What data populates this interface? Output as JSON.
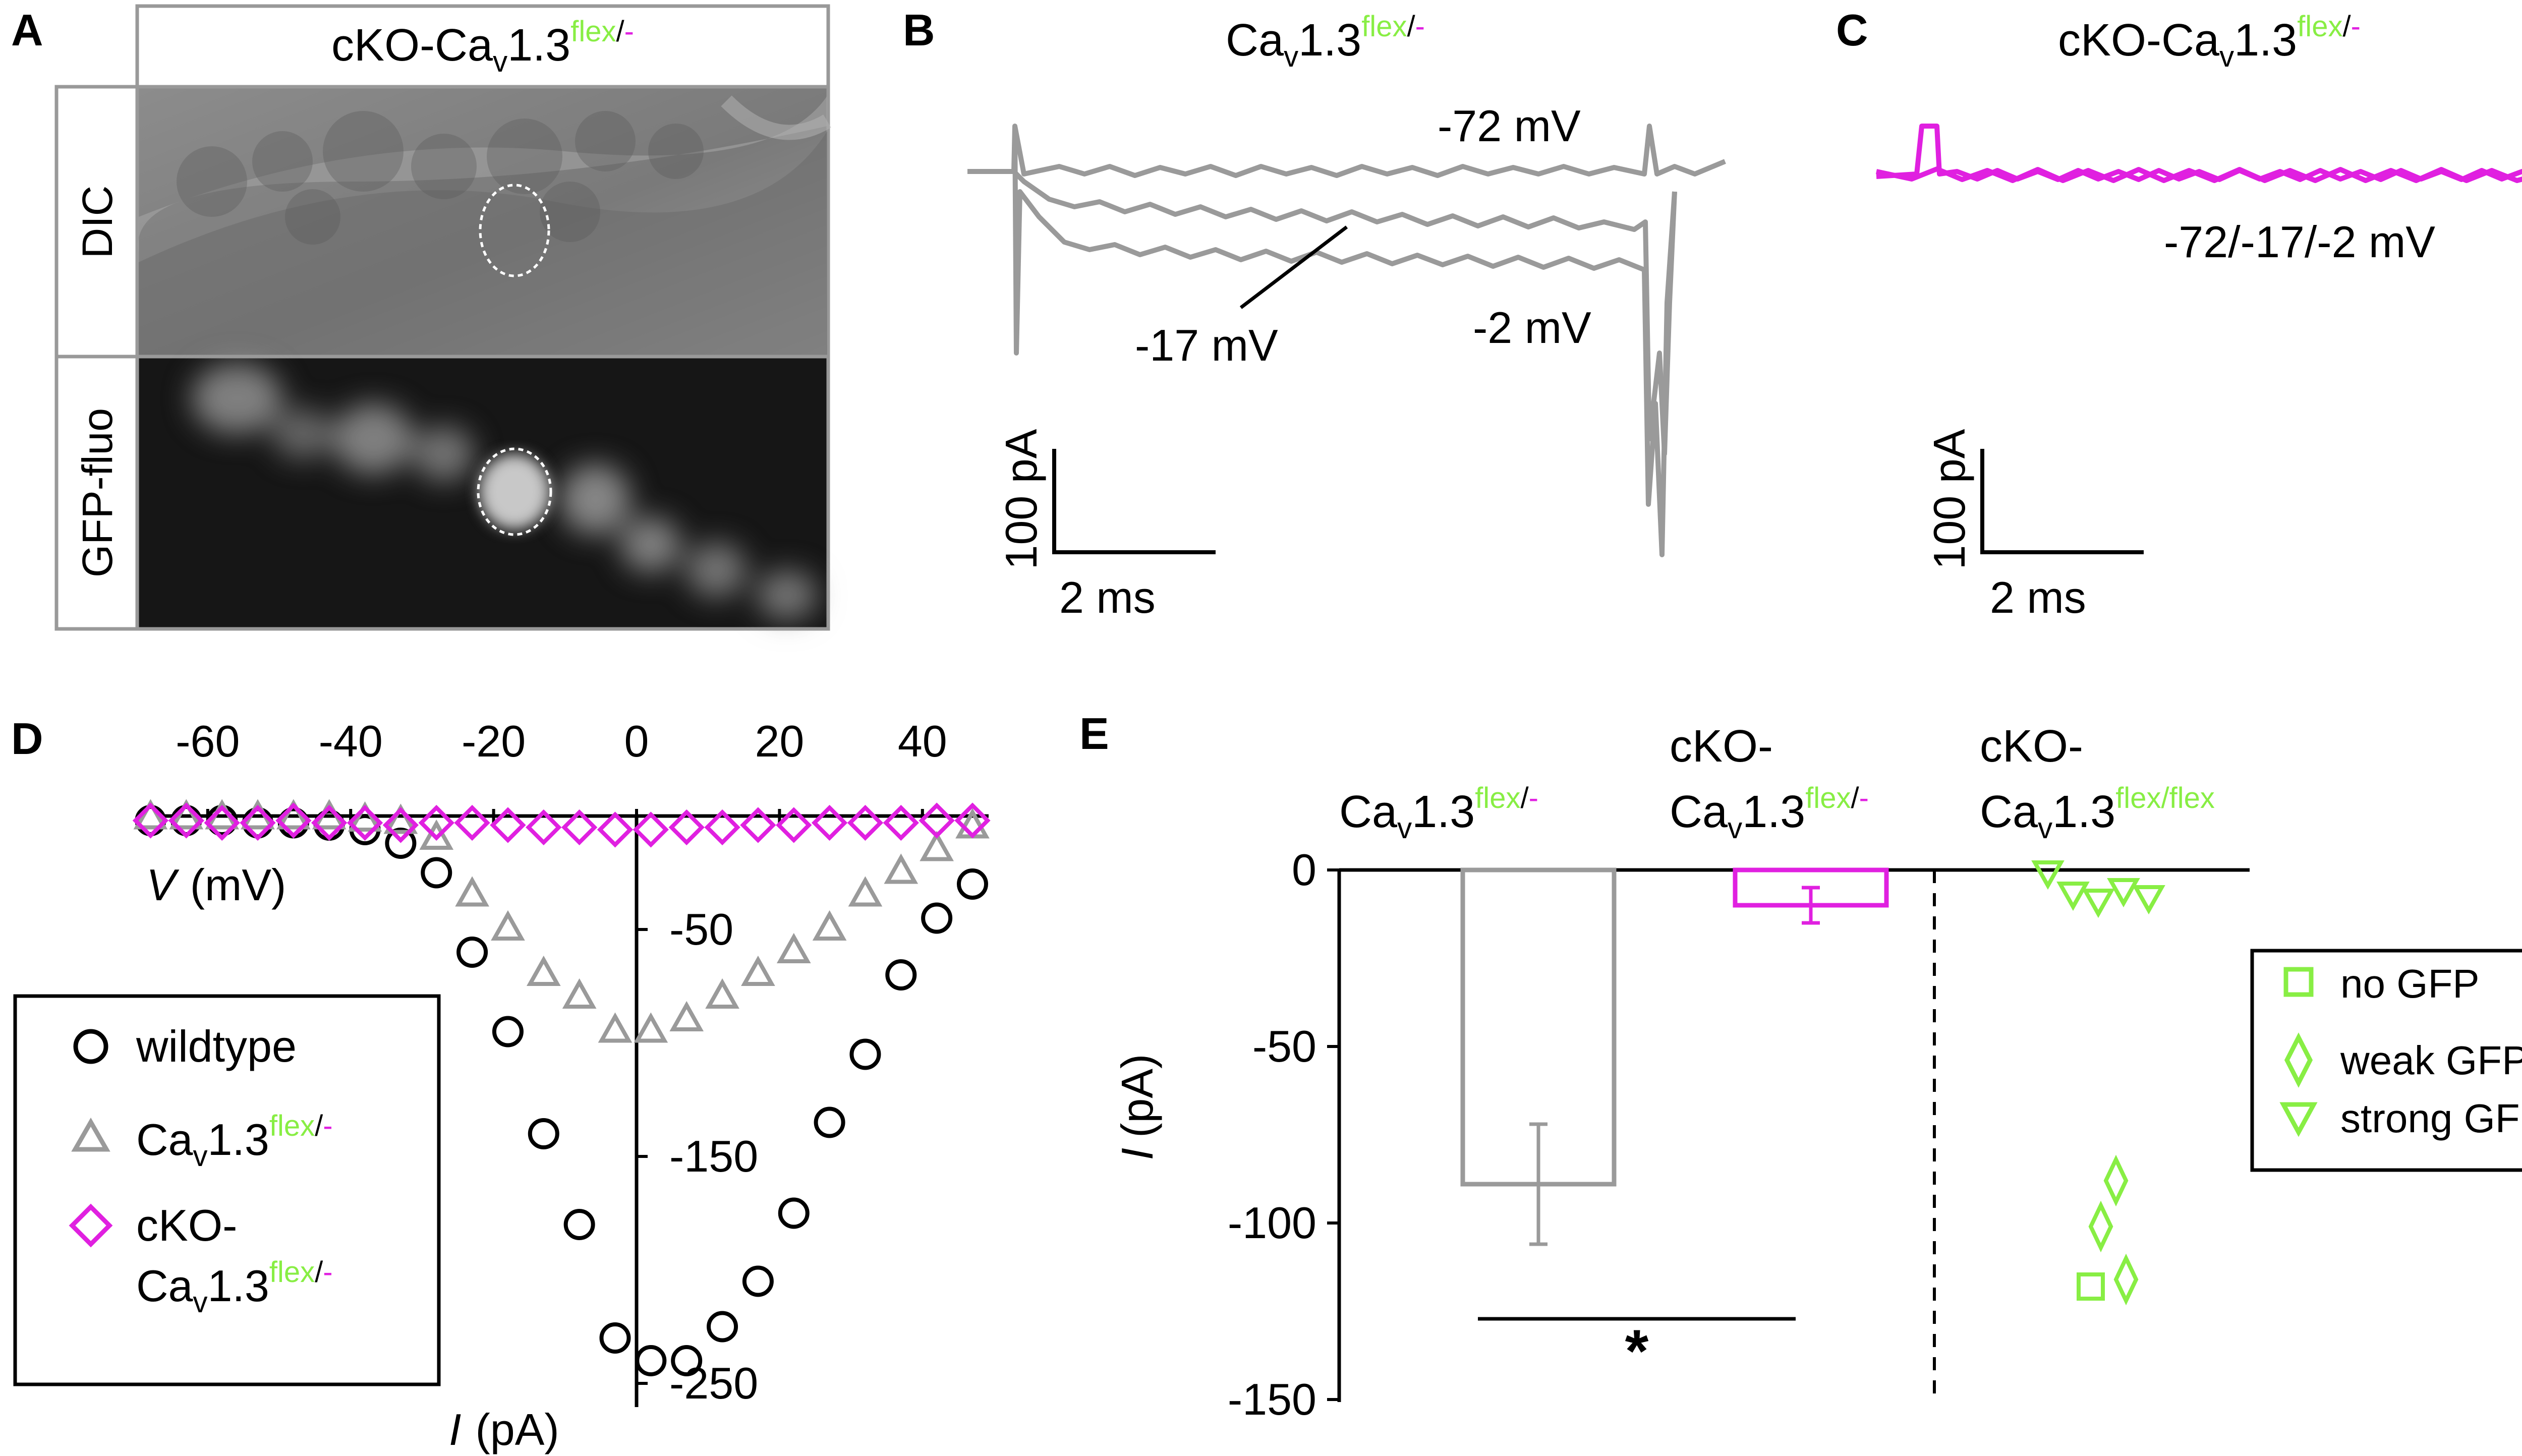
{
  "colors": {
    "gray": "#9a9a9a",
    "magenta": "#e020e0",
    "green": "#88ee44",
    "black": "#000000"
  },
  "panel_labels": {
    "a": "A",
    "b": "B",
    "c": "C",
    "d": "D",
    "e": "E"
  },
  "panel_a": {
    "header_prefix": "cKO-Ca",
    "header_sub": "v",
    "header_mid": "1.3",
    "header_sup_flex": "flex",
    "header_sup_sep": "/",
    "header_sup_minus": "-",
    "row_dic": "DIC",
    "row_gfp": "GFP-fluo"
  },
  "panel_b": {
    "title_prefix": "Ca",
    "title_sub": "v",
    "title_mid": "1.3",
    "title_sup_flex": "flex",
    "title_sup_sep": "/",
    "title_sup_minus": "-",
    "label_m72": "-72 mV",
    "label_m17": "-17 mV",
    "label_m2": "-2 mV",
    "scale_y": "100 pA",
    "scale_x": "2 ms"
  },
  "panel_c": {
    "title_prefix": "cKO-Ca",
    "title_sub": "v",
    "title_mid": "1.3",
    "title_sup_flex": "flex",
    "title_sup_sep": "/",
    "title_sup_minus": "-",
    "label": "-72/-17/-2 mV",
    "scale_y": "100 pA",
    "scale_x": "2 ms"
  },
  "chart_data": [
    {
      "type": "scatter",
      "panel": "D",
      "xlabel_var": "V",
      "xlabel_unit": "(mV)",
      "ylabel_var": "I",
      "ylabel_unit": "(pA)",
      "xlim": [
        -70,
        50
      ],
      "ylim": [
        -260,
        0
      ],
      "x_ticks": [
        -60,
        -40,
        -20,
        0,
        20,
        40
      ],
      "x_tick_labels": [
        "-60",
        "-40",
        "-20",
        "0",
        "20",
        "40"
      ],
      "y_ticks": [
        -50,
        -150,
        -250
      ],
      "y_tick_labels": [
        "-50",
        "-150",
        "-250"
      ],
      "legend_placement": "bottom-left",
      "legend": {
        "wildtype": "wildtype",
        "flex_prefix": "Ca",
        "flex_sub": "v",
        "flex_mid": "1.3",
        "flex_sup_flex": "flex",
        "flex_sup_sep": "/",
        "flex_sup_minus": "-",
        "cko_line1": "cKO-",
        "cko_prefix": "Ca",
        "cko_sub": "v",
        "cko_mid": "1.3",
        "cko_sup_flex": "flex",
        "cko_sup_sep": "/",
        "cko_sup_minus": "-"
      },
      "series": [
        {
          "key": "wildtype",
          "marker": "circle",
          "color": "#000000",
          "x": [
            -68,
            -63,
            -58,
            -53,
            -48,
            -43,
            -38,
            -33,
            -28,
            -23,
            -18,
            -13,
            -8,
            -3,
            2,
            7,
            12,
            17,
            22,
            27,
            32,
            37,
            42,
            47
          ],
          "y": [
            -2,
            -2,
            -2,
            -3,
            -3,
            -4,
            -6,
            -12,
            -25,
            -60,
            -95,
            -140,
            -180,
            -230,
            -240,
            -240,
            -225,
            -205,
            -175,
            -135,
            -105,
            -70,
            -45,
            -30
          ]
        },
        {
          "key": "flex",
          "marker": "triangle",
          "color": "#9a9a9a",
          "x": [
            -68,
            -63,
            -58,
            -53,
            -48,
            -43,
            -38,
            -33,
            -28,
            -23,
            -18,
            -13,
            -8,
            -3,
            2,
            7,
            12,
            17,
            22,
            27,
            32,
            37,
            42,
            47
          ],
          "y": [
            -1,
            -1,
            -1,
            -1,
            -1,
            -1,
            -2,
            -3,
            -10,
            -35,
            -50,
            -70,
            -80,
            -95,
            -95,
            -90,
            -80,
            -70,
            -60,
            -50,
            -35,
            -25,
            -15,
            -5
          ]
        },
        {
          "key": "cko",
          "marker": "diamond",
          "color": "#e020e0",
          "x": [
            -68,
            -63,
            -58,
            -53,
            -48,
            -43,
            -38,
            -33,
            -28,
            -23,
            -18,
            -13,
            -8,
            -3,
            2,
            7,
            12,
            17,
            22,
            27,
            32,
            37,
            42,
            47
          ],
          "y": [
            -2,
            -2,
            -3,
            -3,
            -2,
            -3,
            -3,
            -4,
            -3,
            -3,
            -4,
            -5,
            -5,
            -6,
            -6,
            -5,
            -5,
            -4,
            -4,
            -3,
            -3,
            -3,
            -2,
            -2
          ]
        }
      ]
    },
    {
      "type": "bar",
      "panel": "E",
      "ylabel_var": "I",
      "ylabel_unit": "(pA)",
      "ylim": [
        -150,
        0
      ],
      "y_ticks": [
        0,
        -50,
        -100,
        -150
      ],
      "y_tick_labels": [
        "0",
        "-50",
        "-100",
        "-150"
      ],
      "significance": "*",
      "legend_placement": "right",
      "categories": [
        {
          "line1": "",
          "prefix": "Ca",
          "sub": "v",
          "mid": "1.3",
          "sup_flex": "flex",
          "sup_sep": "/",
          "sup_minus": "-"
        },
        {
          "line1": "cKO-",
          "prefix": "Ca",
          "sub": "v",
          "mid": "1.3",
          "sup_flex": "flex",
          "sup_sep": "/",
          "sup_minus": "-"
        },
        {
          "line1": "cKO-",
          "prefix": "Ca",
          "sub": "v",
          "mid": "1.3",
          "sup_flex": "flex",
          "sup_sep": "/",
          "sup_minus": "flex"
        }
      ],
      "bars": [
        {
          "value": -89,
          "error": 17,
          "color": "#9a9a9a"
        },
        {
          "value": -10,
          "error": 5,
          "color": "#e020e0"
        }
      ],
      "points": {
        "no_gfp": [
          -118
        ],
        "weak_gfp": [
          -88,
          -101,
          -116
        ],
        "strong_gfp": [
          -1,
          -7,
          -9,
          -6,
          -8
        ]
      },
      "legend": {
        "no_gfp": "no GFP",
        "weak_gfp": "weak GFP",
        "strong_gfp": "strong GFP"
      }
    }
  ]
}
